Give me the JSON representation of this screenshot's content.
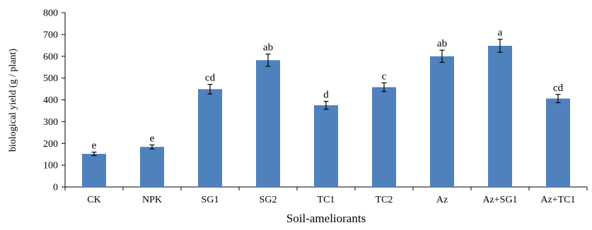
{
  "chart_data": {
    "type": "bar",
    "xlabel": "Soil-ameliorants",
    "ylabel": "biological yield (g / plant)",
    "categories": [
      "CK",
      "NPK",
      "SG1",
      "SG2",
      "TC1",
      "TC2",
      "Az",
      "Az+SG1",
      "Az+TC1"
    ],
    "values": [
      152,
      184,
      449,
      582,
      375,
      458,
      600,
      648,
      406
    ],
    "errors": [
      8,
      9,
      22,
      28,
      18,
      20,
      28,
      30,
      19
    ],
    "letters": [
      "e",
      "e",
      "cd",
      "ab",
      "d",
      "c",
      "ab",
      "a",
      "cd"
    ],
    "ylim": [
      0,
      800
    ],
    "yticks": [
      0,
      100,
      200,
      300,
      400,
      500,
      600,
      700,
      800
    ],
    "grid": false,
    "bar_color": "#4f81bd"
  }
}
